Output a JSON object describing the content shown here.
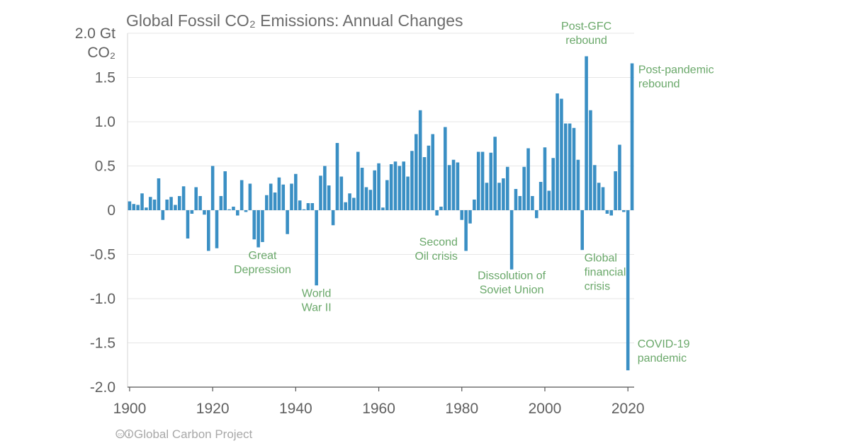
{
  "chart_data": {
    "type": "bar",
    "title": "Global Fossil CO₂ Emissions: Annual Changes",
    "ylabel": "",
    "xlabel": "",
    "y_unit_label": [
      "2.0 Gt",
      "CO₂"
    ],
    "ylim": [
      -2.0,
      2.0
    ],
    "xlim": [
      1899.5,
      2021.5
    ],
    "yticks": [
      2.0,
      1.5,
      1.0,
      0.5,
      0,
      -0.5,
      -1.0,
      -1.5,
      -2.0
    ],
    "ytick_labels": [
      "",
      "1.5",
      "1.0",
      "0.5",
      "0",
      "-0.5",
      "-1.0",
      "-1.5",
      "-2.0"
    ],
    "xticks": [
      1900,
      1920,
      1940,
      1960,
      1980,
      2000,
      2020
    ],
    "xtick_labels": [
      "1900",
      "1920",
      "1940",
      "1960",
      "1980",
      "2000",
      "2020"
    ],
    "grid": true,
    "bar_color": "#3a8fc4",
    "annotation_color": "#6aa86a",
    "x": [
      1900,
      1901,
      1902,
      1903,
      1904,
      1905,
      1906,
      1907,
      1908,
      1909,
      1910,
      1911,
      1912,
      1913,
      1914,
      1915,
      1916,
      1917,
      1918,
      1919,
      1920,
      1921,
      1922,
      1923,
      1924,
      1925,
      1926,
      1927,
      1928,
      1929,
      1930,
      1931,
      1932,
      1933,
      1934,
      1935,
      1936,
      1937,
      1938,
      1939,
      1940,
      1941,
      1942,
      1943,
      1944,
      1945,
      1946,
      1947,
      1948,
      1949,
      1950,
      1951,
      1952,
      1953,
      1954,
      1955,
      1956,
      1957,
      1958,
      1959,
      1960,
      1961,
      1962,
      1963,
      1964,
      1965,
      1966,
      1967,
      1968,
      1969,
      1970,
      1971,
      1972,
      1973,
      1974,
      1975,
      1976,
      1977,
      1978,
      1979,
      1980,
      1981,
      1982,
      1983,
      1984,
      1985,
      1986,
      1987,
      1988,
      1989,
      1990,
      1991,
      1992,
      1993,
      1994,
      1995,
      1996,
      1997,
      1998,
      1999,
      2000,
      2001,
      2002,
      2003,
      2004,
      2005,
      2006,
      2007,
      2008,
      2009,
      2010,
      2011,
      2012,
      2013,
      2014,
      2015,
      2016,
      2017,
      2018,
      2019,
      2020,
      2021
    ],
    "values": [
      0.1,
      0.07,
      0.06,
      0.19,
      0.03,
      0.15,
      0.12,
      0.36,
      -0.11,
      0.12,
      0.15,
      0.06,
      0.16,
      0.27,
      -0.32,
      -0.04,
      0.26,
      0.16,
      -0.05,
      -0.46,
      0.5,
      -0.43,
      0.16,
      0.44,
      0.01,
      0.04,
      -0.06,
      0.34,
      -0.02,
      0.3,
      -0.33,
      -0.42,
      -0.36,
      0.17,
      0.3,
      0.2,
      0.37,
      0.29,
      -0.27,
      0.3,
      0.41,
      0.11,
      0.01,
      0.08,
      0.08,
      -0.85,
      0.39,
      0.5,
      0.28,
      -0.17,
      0.76,
      0.38,
      0.09,
      0.19,
      0.14,
      0.66,
      0.48,
      0.26,
      0.23,
      0.45,
      0.53,
      0.03,
      0.34,
      0.52,
      0.55,
      0.5,
      0.55,
      0.38,
      0.67,
      0.86,
      1.13,
      0.6,
      0.73,
      0.86,
      -0.06,
      0.04,
      0.94,
      0.51,
      0.57,
      0.54,
      -0.11,
      -0.46,
      -0.15,
      0.12,
      0.66,
      0.66,
      0.31,
      0.65,
      0.83,
      0.31,
      0.36,
      0.49,
      -0.67,
      0.24,
      0.16,
      0.49,
      0.7,
      0.16,
      -0.09,
      0.32,
      0.71,
      0.22,
      0.59,
      1.32,
      1.26,
      0.98,
      0.98,
      0.93,
      0.57,
      -0.45,
      1.74,
      1.13,
      0.51,
      0.31,
      0.26,
      -0.04,
      -0.06,
      0.44,
      0.74,
      -0.02,
      -1.81,
      1.66
    ],
    "annotations": [
      {
        "lines": [
          "Great",
          "Depression"
        ],
        "x": 1932,
        "y": -0.55,
        "anchor": "middle"
      },
      {
        "lines": [
          "World",
          "War II"
        ],
        "x": 1945,
        "y": -0.98,
        "anchor": "middle"
      },
      {
        "lines": [
          "Second",
          "Oil crisis"
        ],
        "x": 1979,
        "y": -0.4,
        "anchor": "end"
      },
      {
        "lines": [
          "Dissolution of",
          "Soviet Union"
        ],
        "x": 1992,
        "y": -0.78,
        "anchor": "middle"
      },
      {
        "lines": [
          "Global",
          "financial",
          "crisis"
        ],
        "x": 2009.5,
        "y": -0.58,
        "anchor": "start"
      },
      {
        "lines": [
          "Post-GFC",
          "rebound"
        ],
        "x": 2010,
        "y": 2.04,
        "anchor": "middle"
      },
      {
        "lines": [
          "Post-pandemic",
          "rebound"
        ],
        "x": 2022.5,
        "y": 1.55,
        "anchor": "start"
      },
      {
        "lines": [
          "COVID-19",
          "pandemic"
        ],
        "x": 2022.3,
        "y": -1.55,
        "anchor": "start"
      }
    ]
  },
  "credit": "Global Carbon Project",
  "credit_icons": [
    "creative-commons-icon",
    "attribution-icon"
  ]
}
